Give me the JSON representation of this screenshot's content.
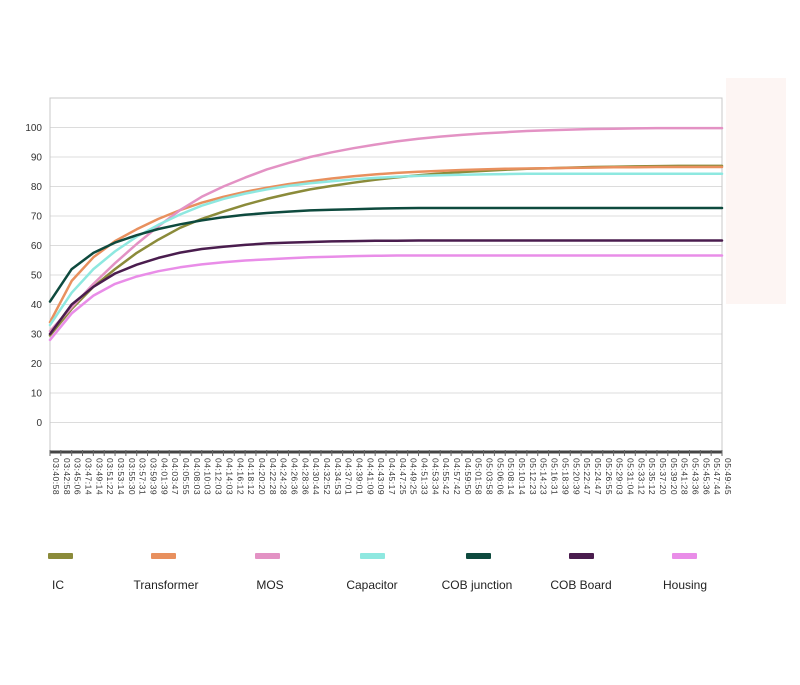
{
  "chart_data": {
    "type": "line",
    "title": "",
    "xlabel": "",
    "ylabel": "",
    "ylim": [
      -10,
      110
    ],
    "yticks": [
      0,
      10,
      20,
      30,
      40,
      50,
      60,
      70,
      80,
      90,
      100
    ],
    "grid": true,
    "legend_position": "bottom",
    "x_tick_labels": [
      "03:40:58",
      "03:42:58",
      "03:45:06",
      "03:47:14",
      "03:49:14",
      "03:51:22",
      "03:53:14",
      "03:55:30",
      "03:57:31",
      "03:59:39",
      "04:01:39",
      "04:03:47",
      "04:05:55",
      "04:08:03",
      "04:10:03",
      "04:12:03",
      "04:14:03",
      "04:16:12",
      "04:18:12",
      "04:20:20",
      "04:22:28",
      "04:24:28",
      "04:26:36",
      "04:28:36",
      "04:30:44",
      "04:32:52",
      "04:34:53",
      "04:37:01",
      "04:39:01",
      "04:41:09",
      "04:43:09",
      "04:45:17",
      "04:47:25",
      "04:49:25",
      "04:51:33",
      "04:53:34",
      "04:55:42",
      "04:57:42",
      "04:59:50",
      "05:01:58",
      "05:03:58",
      "05:06:06",
      "05:08:14",
      "05:10:14",
      "05:12:23",
      "05:14:23",
      "05:16:31",
      "05:18:39",
      "05:20:39",
      "05:22:47",
      "05:24:47",
      "05:26:55",
      "05:29:03",
      "05:31:04",
      "05:33:12",
      "05:35:12",
      "05:37:20",
      "05:39:20",
      "05:41:28",
      "05:43:36",
      "05:45:36",
      "05:47:44",
      "05:49:45"
    ],
    "x": [
      0,
      2,
      4,
      6,
      8,
      10,
      12,
      14,
      16,
      18,
      20,
      22,
      24,
      26,
      28,
      30,
      32,
      34,
      36,
      38,
      40,
      42,
      44,
      46,
      48,
      50,
      52,
      54,
      56,
      58,
      60,
      62
    ],
    "series": [
      {
        "name": "IC",
        "color": "#8b8b3a",
        "values": [
          29.5,
          38.5,
          46.0,
          52.0,
          57.5,
          62.0,
          66.0,
          69.0,
          71.5,
          73.8,
          75.8,
          77.5,
          79.0,
          80.2,
          81.3,
          82.3,
          83.1,
          83.8,
          84.4,
          84.9,
          85.3,
          85.7,
          86.0,
          86.2,
          86.4,
          86.6,
          86.7,
          86.8,
          86.9,
          87.0,
          87.0,
          87.0
        ]
      },
      {
        "name": "Transformer",
        "color": "#e8905e",
        "values": [
          34.0,
          48.0,
          56.0,
          61.5,
          65.5,
          69.0,
          72.0,
          74.5,
          76.5,
          78.2,
          79.6,
          80.8,
          81.8,
          82.7,
          83.5,
          84.1,
          84.6,
          85.0,
          85.3,
          85.6,
          85.8,
          86.0,
          86.1,
          86.2,
          86.3,
          86.4,
          86.5,
          86.5,
          86.6,
          86.6,
          86.6,
          86.6
        ]
      },
      {
        "name": "MOS",
        "color": "#e392c4",
        "values": [
          31.0,
          39.0,
          47.0,
          54.0,
          60.5,
          66.5,
          72.0,
          76.5,
          80.0,
          83.0,
          85.8,
          88.0,
          90.0,
          91.6,
          93.0,
          94.2,
          95.3,
          96.2,
          96.9,
          97.5,
          98.0,
          98.4,
          98.8,
          99.1,
          99.3,
          99.5,
          99.6,
          99.7,
          99.8,
          99.8,
          99.8,
          99.8
        ]
      },
      {
        "name": "Capacitor",
        "color": "#8ee8e0",
        "values": [
          33.0,
          44.0,
          52.0,
          58.0,
          63.0,
          67.0,
          70.5,
          73.5,
          75.8,
          77.6,
          79.0,
          80.2,
          81.1,
          81.8,
          82.4,
          82.9,
          83.3,
          83.6,
          83.8,
          84.0,
          84.1,
          84.2,
          84.3,
          84.3,
          84.3,
          84.3,
          84.3,
          84.3,
          84.3,
          84.3,
          84.3,
          84.3
        ]
      },
      {
        "name": "COB  junction",
        "color": "#0e4a3e",
        "values": [
          41.0,
          52.0,
          57.5,
          61.0,
          63.5,
          65.6,
          67.2,
          68.5,
          69.6,
          70.4,
          71.0,
          71.5,
          71.9,
          72.1,
          72.3,
          72.5,
          72.6,
          72.7,
          72.7,
          72.7,
          72.7,
          72.7,
          72.7,
          72.7,
          72.7,
          72.7,
          72.7,
          72.7,
          72.7,
          72.7,
          72.7,
          72.7
        ]
      },
      {
        "name": "COB Board",
        "color": "#4a1d4e",
        "values": [
          30.0,
          40.0,
          46.0,
          50.5,
          53.5,
          55.8,
          57.6,
          58.8,
          59.6,
          60.2,
          60.7,
          61.0,
          61.2,
          61.4,
          61.5,
          61.6,
          61.6,
          61.7,
          61.7,
          61.7,
          61.7,
          61.7,
          61.7,
          61.7,
          61.7,
          61.7,
          61.7,
          61.7,
          61.7,
          61.7,
          61.7,
          61.7
        ]
      },
      {
        "name": "Housing",
        "color": "#e98de8",
        "values": [
          28.0,
          37.0,
          43.0,
          47.0,
          49.5,
          51.3,
          52.6,
          53.6,
          54.3,
          54.9,
          55.3,
          55.7,
          56.0,
          56.2,
          56.4,
          56.5,
          56.6,
          56.6,
          56.6,
          56.6,
          56.6,
          56.6,
          56.6,
          56.6,
          56.6,
          56.6,
          56.6,
          56.6,
          56.6,
          56.6,
          56.6,
          56.6
        ]
      }
    ]
  }
}
